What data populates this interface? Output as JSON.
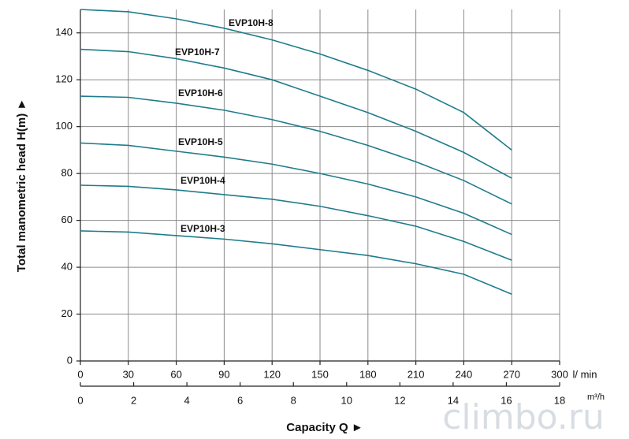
{
  "chart_data": {
    "type": "line",
    "x": [
      0,
      30,
      60,
      90,
      120,
      150,
      180,
      210,
      240,
      270
    ],
    "series": [
      {
        "name": "EVP10H-8",
        "color": "#1f7c8c",
        "values": [
          150,
          149,
          146,
          142,
          137,
          131,
          124,
          116,
          106,
          90
        ]
      },
      {
        "name": "EVP10H-7",
        "color": "#1f7c8c",
        "values": [
          133,
          132,
          129,
          125,
          120,
          113,
          106,
          98,
          89,
          78
        ]
      },
      {
        "name": "EVP10H-6",
        "color": "#1f7c8c",
        "values": [
          113,
          112.5,
          110,
          107,
          103,
          98,
          92,
          85,
          77,
          67
        ]
      },
      {
        "name": "EVP10H-5",
        "color": "#1f7c8c",
        "values": [
          93,
          92,
          89.5,
          87,
          84,
          80,
          75.5,
          70,
          63,
          54
        ]
      },
      {
        "name": "EVP10H-4",
        "color": "#1f7c8c",
        "values": [
          75,
          74.5,
          73,
          71,
          69,
          66,
          62,
          57.5,
          51,
          43
        ]
      },
      {
        "name": "EVP10H-3",
        "color": "#1f7c8c",
        "values": [
          55.5,
          55,
          53.5,
          52,
          50,
          47.5,
          45,
          41.5,
          37,
          28.5
        ]
      }
    ],
    "xlim": [
      0,
      300
    ],
    "xticks": [
      0,
      30,
      60,
      90,
      120,
      150,
      180,
      210,
      240,
      270,
      300
    ],
    "xunit": "l/ min",
    "x2lim": [
      0,
      18
    ],
    "x2ticks": [
      0,
      2,
      4,
      6,
      8,
      10,
      12,
      14,
      16,
      18
    ],
    "x2unit": "m³/h",
    "ylim": [
      0,
      150
    ],
    "yticks": [
      0,
      20,
      40,
      60,
      80,
      100,
      120,
      140
    ],
    "xlabel": "Capacity Q  ►",
    "ylabel": "Total manometric head H(m)  ►",
    "grid": true,
    "watermark": "climbo.ru"
  }
}
